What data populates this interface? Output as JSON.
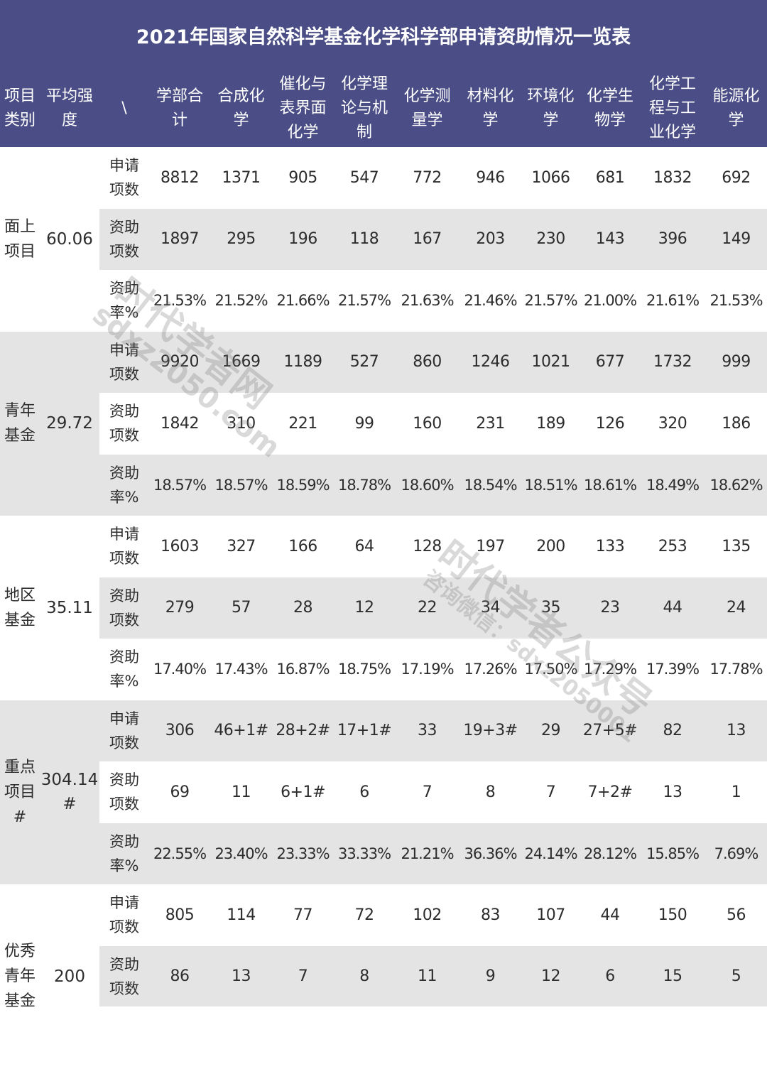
{
  "title": "2021年国家自然科学基金化学科学部申请资助情况一览表",
  "header": {
    "category": "项目\n类别",
    "avg_intensity": "平均强\n度",
    "slash": "\\",
    "departments": [
      "学部合\n计",
      "合成化\n学",
      "催化与\n表界面\n化学",
      "化学理\n论与机\n制",
      "化学测\n量学",
      "材料化\n学",
      "环境化\n学",
      "化学生\n物学",
      "化学工\n程与工\n业化学",
      "能源化\n学"
    ]
  },
  "metric_labels": {
    "apply": "申请\n项数",
    "fund": "资助\n项数",
    "rate": "资助\n率%"
  },
  "groups": [
    {
      "category": "面上\n项目",
      "avg": "60.06",
      "rows": [
        {
          "metric": "apply",
          "values": [
            "8812",
            "1371",
            "905",
            "547",
            "772",
            "946",
            "1066",
            "681",
            "1832",
            "692"
          ]
        },
        {
          "metric": "fund",
          "values": [
            "1897",
            "295",
            "196",
            "118",
            "167",
            "203",
            "230",
            "143",
            "396",
            "149"
          ]
        },
        {
          "metric": "rate",
          "values": [
            "21.53%",
            "21.52%",
            "21.66%",
            "21.57%",
            "21.63%",
            "21.46%",
            "21.57%",
            "21.00%",
            "21.61%",
            "21.53%"
          ]
        }
      ]
    },
    {
      "category": "青年\n基金",
      "avg": "29.72",
      "rows": [
        {
          "metric": "apply",
          "values": [
            "9920",
            "1669",
            "1189",
            "527",
            "860",
            "1246",
            "1021",
            "677",
            "1732",
            "999"
          ]
        },
        {
          "metric": "fund",
          "values": [
            "1842",
            "310",
            "221",
            "99",
            "160",
            "231",
            "189",
            "126",
            "320",
            "186"
          ]
        },
        {
          "metric": "rate",
          "values": [
            "18.57%",
            "18.57%",
            "18.59%",
            "18.78%",
            "18.60%",
            "18.54%",
            "18.51%",
            "18.61%",
            "18.49%",
            "18.62%"
          ]
        }
      ]
    },
    {
      "category": "地区\n基金",
      "avg": "35.11",
      "rows": [
        {
          "metric": "apply",
          "values": [
            "1603",
            "327",
            "166",
            "64",
            "128",
            "197",
            "200",
            "133",
            "253",
            "135"
          ]
        },
        {
          "metric": "fund",
          "values": [
            "279",
            "57",
            "28",
            "12",
            "22",
            "34",
            "35",
            "23",
            "44",
            "24"
          ]
        },
        {
          "metric": "rate",
          "values": [
            "17.40%",
            "17.43%",
            "16.87%",
            "18.75%",
            "17.19%",
            "17.26%",
            "17.50%",
            "17.29%",
            "17.39%",
            "17.78%"
          ]
        }
      ]
    },
    {
      "category": "重点\n项目\n#",
      "avg": "304.14\n#",
      "rows": [
        {
          "metric": "apply",
          "values": [
            "306",
            "46+1#",
            "28+2#",
            "17+1#",
            "33",
            "19+3#",
            "29",
            "27+5#",
            "82",
            "13"
          ]
        },
        {
          "metric": "fund",
          "values": [
            "69",
            "11",
            "6+1#",
            "6",
            "7",
            "8",
            "7",
            "7+2#",
            "13",
            "1"
          ]
        },
        {
          "metric": "rate",
          "values": [
            "22.55%",
            "23.40%",
            "23.33%",
            "33.33%",
            "21.21%",
            "36.36%",
            "24.14%",
            "28.12%",
            "15.85%",
            "7.69%"
          ]
        }
      ]
    },
    {
      "category": "优秀\n青年\n基金",
      "avg": "200",
      "rows": [
        {
          "metric": "apply",
          "values": [
            "805",
            "114",
            "77",
            "72",
            "102",
            "83",
            "107",
            "44",
            "150",
            "56"
          ]
        },
        {
          "metric": "fund",
          "values": [
            "86",
            "13",
            "7",
            "8",
            "11",
            "9",
            "12",
            "6",
            "15",
            "5"
          ]
        }
      ]
    }
  ],
  "watermarks": {
    "site_cn": "时代学者网",
    "site_url": "sdxz2050.com",
    "account_cn": "时代学者公众号",
    "contact": "咨询微信：sdxz2050001"
  },
  "colors": {
    "header_bg": "#4b4e86",
    "header_text": "#ffffff",
    "shade_bg": "#e4e4e4",
    "text": "#2d2d2d"
  }
}
